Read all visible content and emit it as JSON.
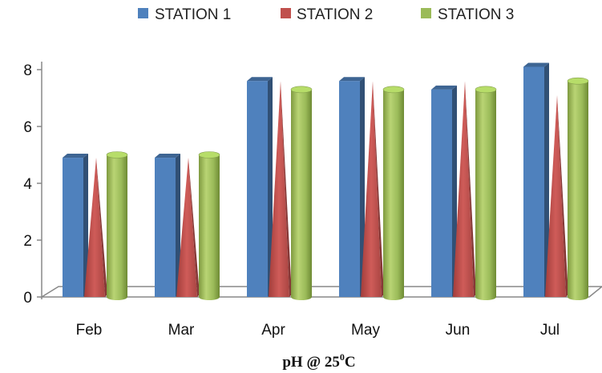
{
  "chart_data": {
    "type": "bar",
    "categories": [
      "Feb",
      "Mar",
      "Apr",
      "May",
      "Jun",
      "Jul"
    ],
    "series": [
      {
        "name": "STATION 1",
        "values": [
          4.9,
          4.9,
          7.6,
          7.6,
          7.3,
          8.1
        ],
        "color": "#4f81bd",
        "shape": "box"
      },
      {
        "name": "STATION 2",
        "values": [
          4.9,
          4.9,
          7.6,
          7.6,
          7.6,
          7.1
        ],
        "color": "#c0504d",
        "shape": "pyramid"
      },
      {
        "name": "STATION 3",
        "values": [
          5.0,
          5.0,
          7.3,
          7.3,
          7.3,
          7.6
        ],
        "color": "#9bbb59",
        "shape": "cylinder"
      }
    ],
    "yticks": [
      "0",
      "2",
      "4",
      "6",
      "8"
    ],
    "ylim": [
      0,
      8
    ],
    "xlabel": {
      "main": "pH @ 25",
      "sup": "0",
      "suffix": "C"
    },
    "ylabel": "",
    "legend_position": "top",
    "grid": false
  }
}
